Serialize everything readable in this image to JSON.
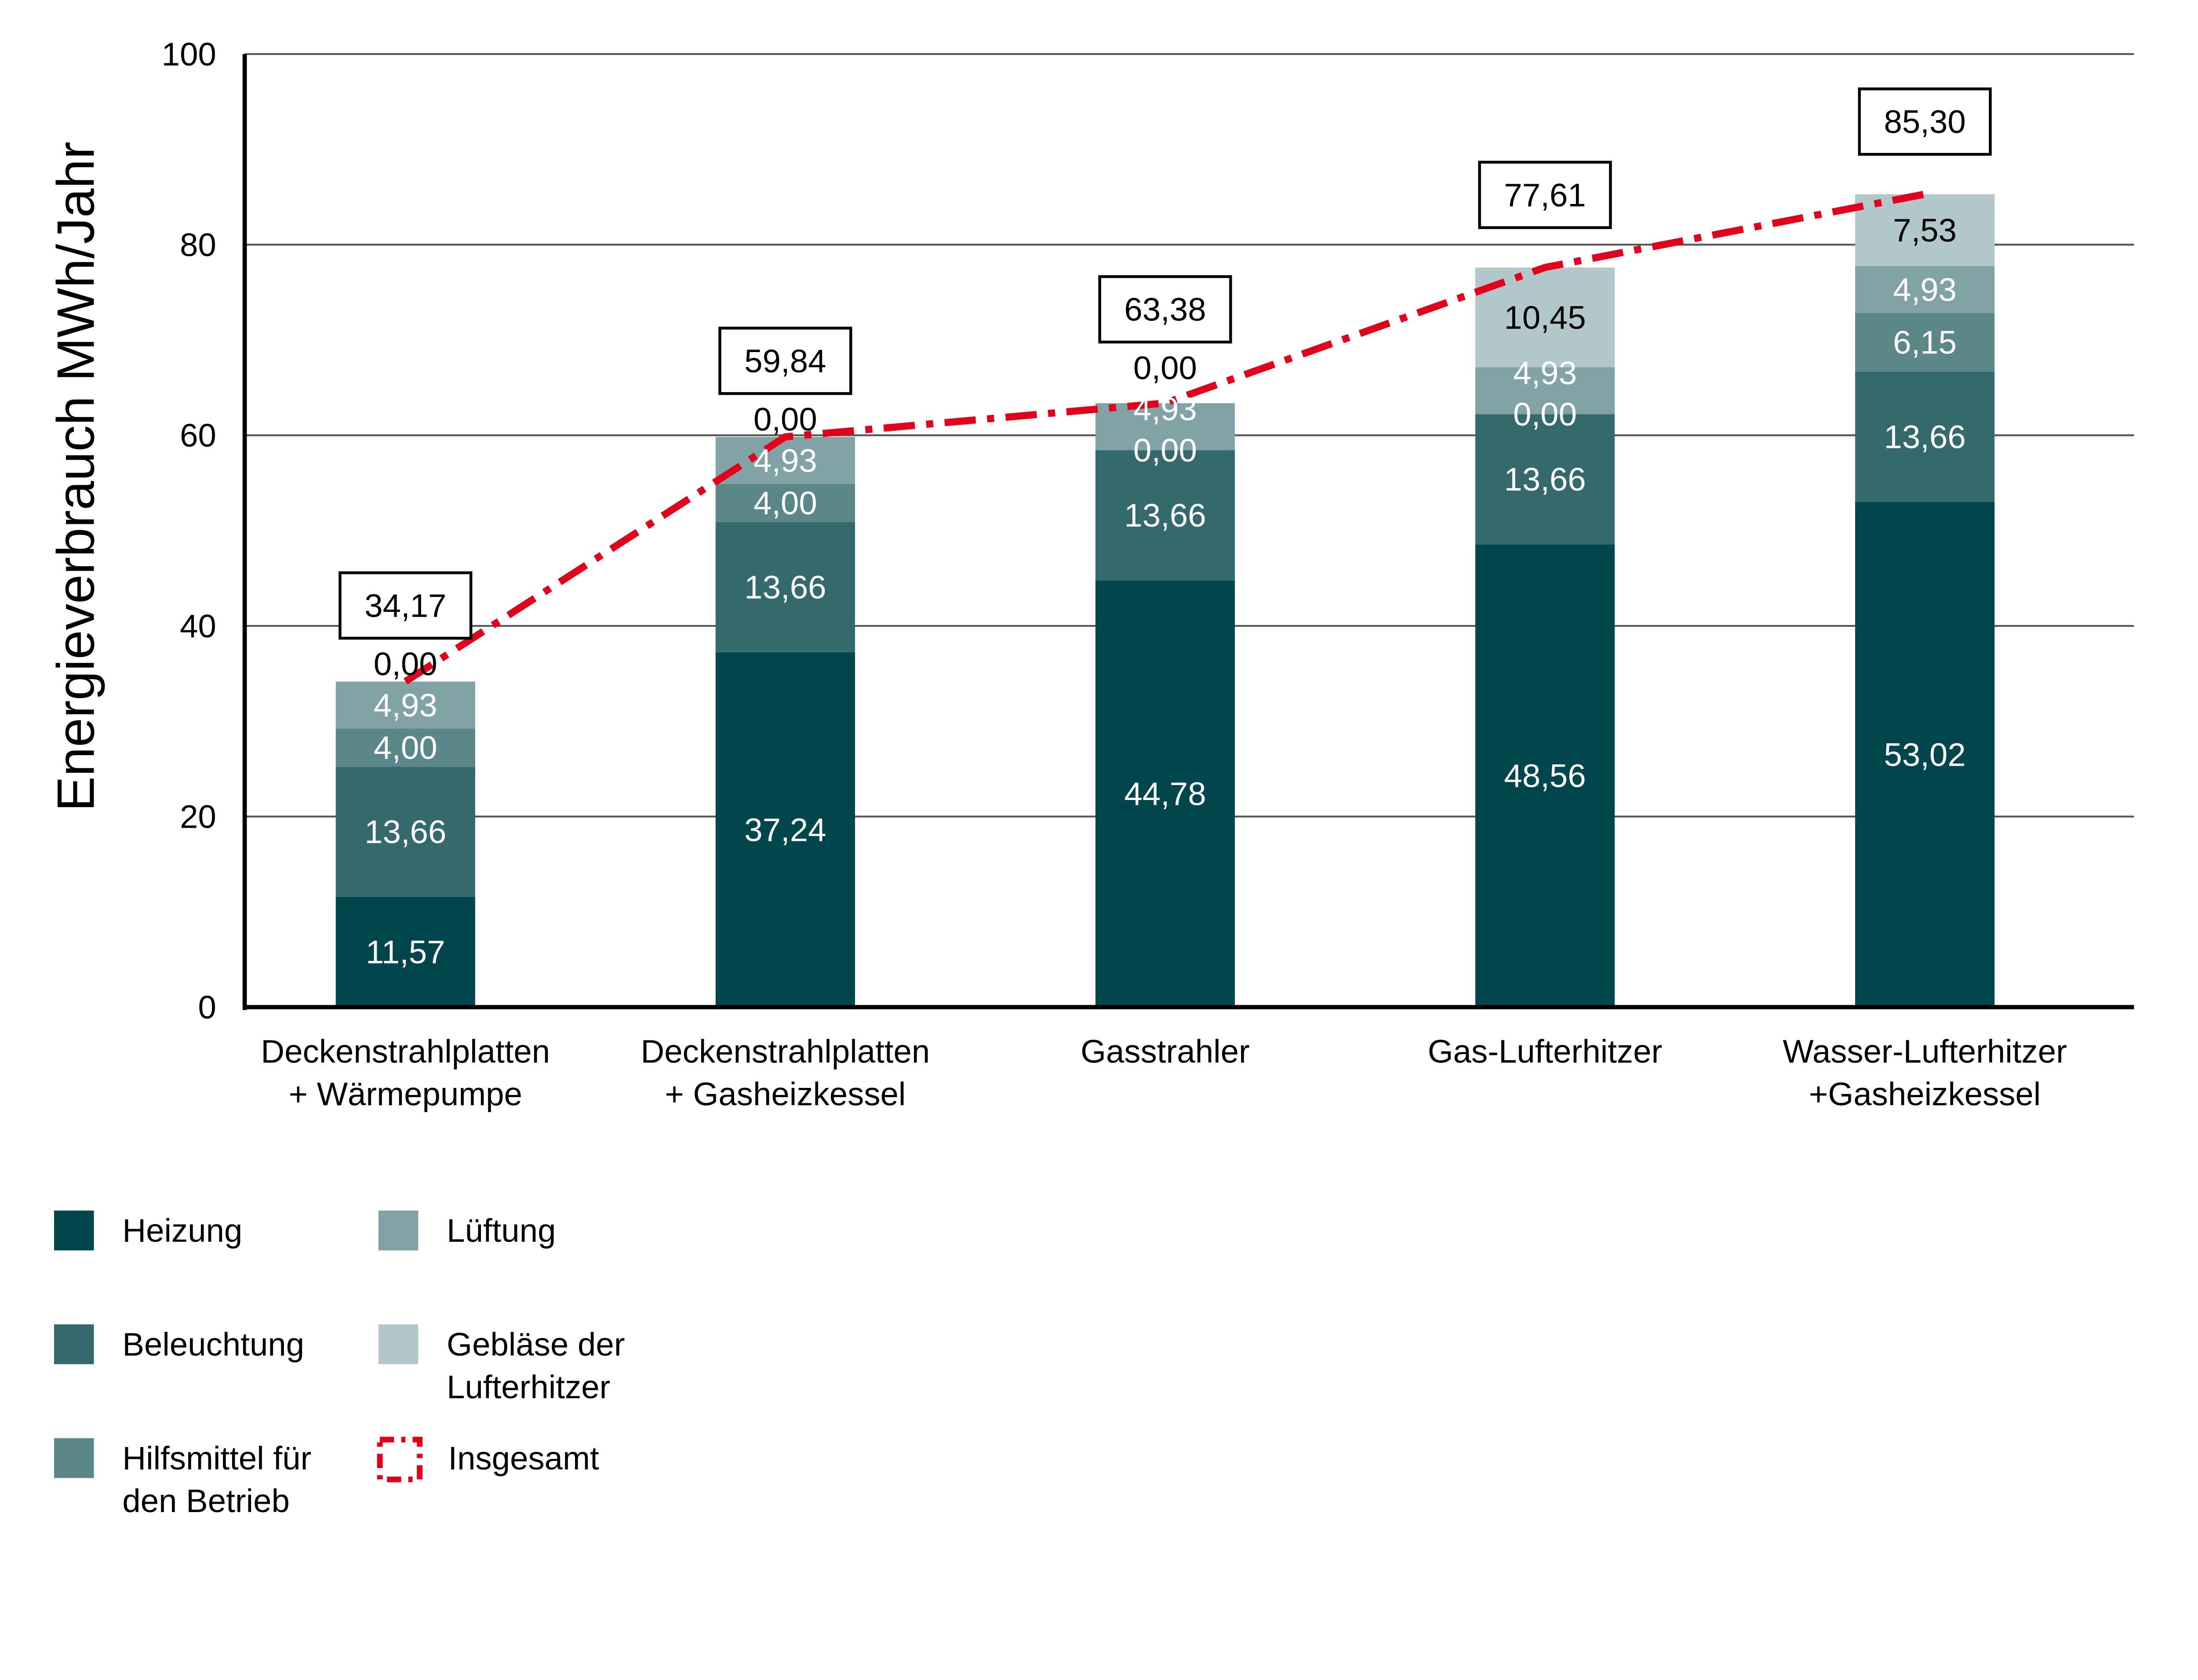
{
  "chart_data": {
    "type": "bar",
    "stacked": true,
    "ylabel": "Energieverbrauch MWh/Jahr",
    "ylim": [
      0,
      100
    ],
    "yticks": [
      "0",
      "20",
      "40",
      "60",
      "80",
      "100"
    ],
    "ytick_values": [
      0,
      20,
      40,
      60,
      80,
      100
    ],
    "grid": true,
    "categories": [
      [
        "Deckenstrahlplatten",
        "+ Wärmepumpe"
      ],
      [
        "Deckenstrahlplatten",
        "+ Gasheizkessel"
      ],
      [
        "Gasstrahler"
      ],
      [
        "Gas-Lufterhitzer"
      ],
      [
        "Wasser-Lufterhitzer",
        "+Gasheizkessel"
      ]
    ],
    "series": [
      {
        "name": "Heizung",
        "color": "#02464d",
        "values": [
          11.57,
          37.24,
          44.78,
          48.56,
          53.02
        ],
        "labels": [
          "11,57",
          "37,24",
          "44,78",
          "48,56",
          "53,02"
        ],
        "label_color": "#ffffff"
      },
      {
        "name": "Beleuchtung",
        "color": "#346a6c",
        "values": [
          13.66,
          13.66,
          13.66,
          13.66,
          13.66
        ],
        "labels": [
          "13,66",
          "13,66",
          "13,66",
          "13,66",
          "13,66"
        ],
        "label_color": "#ffffff"
      },
      {
        "name": "Hilfsmittel für den Betrieb",
        "legend_lines": [
          "Hilfsmittel für",
          "den Betrieb"
        ],
        "color": "#5c8788",
        "values": [
          4.0,
          4.0,
          0.0,
          0.0,
          6.15
        ],
        "labels": [
          "4,00",
          "4,00",
          "0,00",
          "0,00",
          "6,15"
        ],
        "label_color": "#ffffff"
      },
      {
        "name": "Lüftung",
        "color": "#81a3a5",
        "values": [
          4.93,
          4.93,
          4.93,
          4.93,
          4.93
        ],
        "labels": [
          "4,93",
          "4,93",
          "4,93",
          "4,93",
          "4,93"
        ],
        "label_color": "#ffffff"
      },
      {
        "name": "Gebläse der Lufterhitzer",
        "legend_lines": [
          "Gebläse der",
          "Lufterhitzer"
        ],
        "color": "#b2c7c9",
        "values": [
          0.0,
          0.0,
          0.0,
          10.45,
          7.53
        ],
        "labels": [
          "0,00",
          "0,00",
          "0,00",
          "10,45",
          "7,53"
        ],
        "label_color": "#000000"
      }
    ],
    "total": {
      "name": "Insgesamt",
      "color": "#e2001a",
      "values": [
        34.17,
        59.84,
        63.38,
        77.61,
        85.3
      ],
      "labels": [
        "34,17",
        "59,84",
        "63,38",
        "77,61",
        "85,30"
      ]
    }
  }
}
